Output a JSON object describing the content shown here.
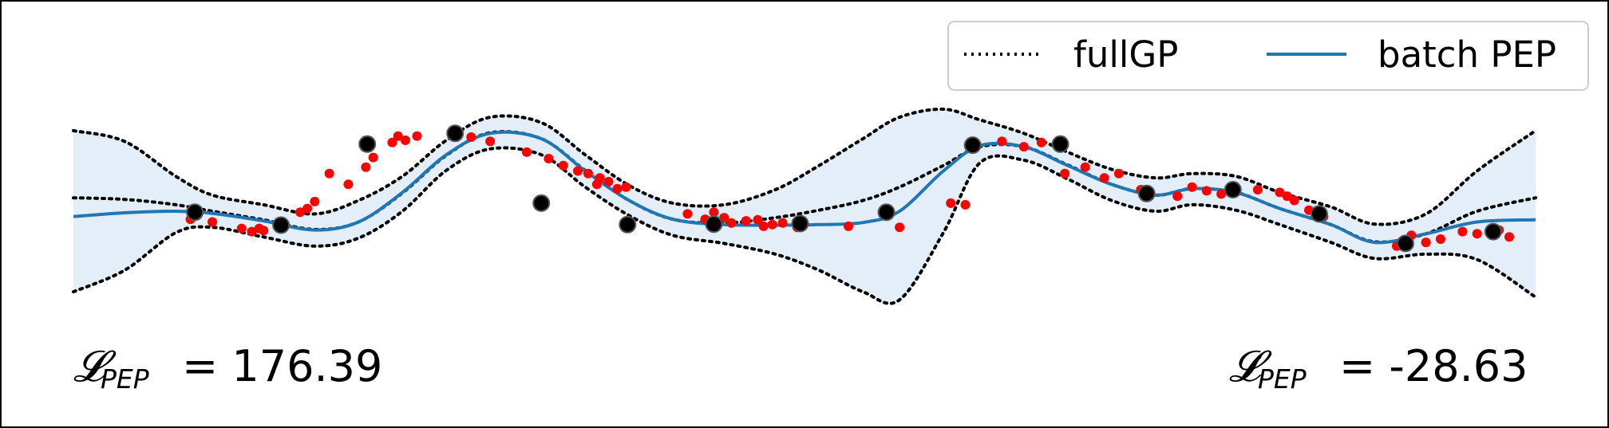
{
  "chart_data": {
    "type": "line",
    "xlim": [
      0,
      10
    ],
    "ylim": [
      -2.2,
      2.4
    ],
    "grid": false,
    "legend": {
      "position": "top-right",
      "columns": 2,
      "entries": [
        {
          "label": "fullGP",
          "style": "dotted",
          "color": "#000000"
        },
        {
          "label": "batch PEP",
          "style": "solid",
          "color": "#1f77b4"
        }
      ]
    },
    "colors": {
      "batch_pep_line": "#1f77b4",
      "batch_pep_band": "#e3eef8",
      "fullgp_line": "#000000",
      "observations": "#ff0000",
      "inducing_points": "#000000"
    },
    "series": [
      {
        "name": "batch PEP",
        "kind": "mean",
        "x": [
          0.0,
          0.35,
          0.7,
          0.95,
          1.3,
          1.65,
          1.95,
          2.25,
          2.55,
          2.85,
          3.2,
          3.5,
          3.8,
          4.1,
          4.45,
          4.8,
          5.1,
          5.4,
          5.65,
          5.95,
          6.2,
          6.5,
          6.8,
          7.1,
          7.4,
          7.65,
          7.95,
          8.25,
          8.6,
          8.9,
          9.25,
          9.6,
          10.0
        ],
        "y": [
          0.0,
          0.07,
          0.1,
          0.06,
          -0.08,
          -0.25,
          -0.1,
          0.45,
          1.15,
          1.55,
          1.45,
          0.85,
          0.3,
          -0.05,
          -0.15,
          -0.16,
          -0.15,
          -0.11,
          0.1,
          0.85,
          1.32,
          1.3,
          0.95,
          0.6,
          0.4,
          0.52,
          0.45,
          0.15,
          -0.15,
          -0.48,
          -0.32,
          -0.1,
          -0.06
        ]
      },
      {
        "name": "fullGP",
        "kind": "mean",
        "x": [
          0.0,
          0.35,
          0.7,
          0.95,
          1.3,
          1.65,
          1.95,
          2.25,
          2.55,
          2.85,
          3.2,
          3.5,
          3.8,
          4.1,
          4.45,
          4.8,
          5.1,
          5.4,
          5.65,
          5.95,
          6.2,
          6.5,
          6.8,
          7.1,
          7.4,
          7.65,
          7.95,
          8.25,
          8.6,
          8.9,
          9.25,
          9.6,
          10.0
        ],
        "y": [
          0.35,
          0.32,
          0.22,
          0.1,
          -0.06,
          -0.24,
          -0.1,
          0.44,
          1.14,
          1.56,
          1.45,
          0.86,
          0.3,
          -0.05,
          -0.12,
          -0.02,
          0.12,
          0.3,
          0.55,
          0.95,
          1.3,
          1.3,
          0.96,
          0.6,
          0.4,
          0.52,
          0.45,
          0.15,
          -0.15,
          -0.47,
          -0.32,
          0.1,
          0.35
        ]
      },
      {
        "name": "fullGP",
        "kind": "band",
        "x": [
          0.0,
          0.35,
          0.7,
          0.95,
          1.3,
          1.65,
          1.95,
          2.25,
          2.55,
          2.85,
          3.2,
          3.5,
          3.8,
          4.1,
          4.45,
          4.8,
          5.1,
          5.4,
          5.65,
          5.95,
          6.2,
          6.5,
          6.8,
          7.1,
          7.4,
          7.65,
          7.95,
          8.25,
          8.6,
          8.9,
          9.25,
          9.6,
          10.0
        ],
        "upper": [
          1.6,
          1.4,
          0.75,
          0.4,
          0.22,
          0.05,
          0.3,
          0.75,
          1.42,
          1.85,
          1.75,
          1.15,
          0.58,
          0.25,
          0.22,
          0.5,
          0.95,
          1.45,
          1.85,
          2.0,
          1.8,
          1.55,
          1.2,
          0.88,
          0.72,
          0.8,
          0.75,
          0.45,
          0.18,
          -0.14,
          0.05,
          0.85,
          1.6
        ],
        "lower": [
          -1.4,
          -1.0,
          -0.3,
          -0.2,
          -0.38,
          -0.55,
          -0.4,
          0.1,
          0.86,
          1.26,
          1.15,
          0.55,
          0.02,
          -0.35,
          -0.5,
          -0.7,
          -1.0,
          -1.4,
          -1.55,
          -0.3,
          1.0,
          1.05,
          0.7,
          0.3,
          0.1,
          0.22,
          0.12,
          -0.15,
          -0.48,
          -0.78,
          -0.7,
          -0.8,
          -1.5
        ]
      }
    ],
    "observations": {
      "x": [
        0.8,
        0.95,
        1.15,
        1.22,
        1.27,
        1.3,
        1.55,
        1.6,
        1.65,
        1.75,
        1.88,
        2.0,
        2.05,
        2.18,
        2.22,
        2.27,
        2.35,
        2.6,
        2.72,
        2.85,
        3.1,
        3.25,
        3.35,
        3.45,
        3.52,
        3.58,
        3.6,
        3.66,
        3.72,
        3.78,
        4.2,
        4.32,
        4.38,
        4.45,
        4.5,
        4.6,
        4.68,
        4.72,
        4.78,
        4.85,
        4.95,
        5.3,
        5.65,
        6.0,
        6.1,
        6.35,
        6.5,
        6.62,
        6.78,
        6.92,
        7.05,
        7.15,
        7.3,
        7.55,
        7.65,
        7.75,
        7.85,
        8.1,
        8.25,
        8.3,
        8.35,
        8.45,
        8.55,
        9.05,
        9.15,
        9.25,
        9.35,
        9.5,
        9.6,
        9.75,
        9.82
      ],
      "y": [
        -0.05,
        -0.1,
        -0.22,
        -0.28,
        -0.22,
        -0.26,
        0.08,
        0.15,
        0.28,
        0.8,
        0.6,
        0.92,
        1.1,
        1.38,
        1.5,
        1.42,
        1.5,
        1.55,
        1.48,
        1.4,
        1.2,
        1.08,
        0.95,
        0.85,
        0.8,
        0.6,
        0.72,
        0.65,
        0.52,
        0.55,
        0.05,
        -0.05,
        0.08,
        -0.02,
        -0.12,
        -0.08,
        -0.06,
        -0.18,
        -0.15,
        -0.12,
        -0.2,
        -0.18,
        -0.2,
        0.25,
        0.22,
        1.4,
        1.3,
        1.38,
        0.8,
        0.92,
        0.72,
        0.8,
        0.5,
        0.38,
        0.55,
        0.48,
        0.42,
        0.5,
        0.45,
        0.38,
        0.3,
        0.12,
        0.0,
        -0.55,
        -0.35,
        -0.48,
        -0.42,
        -0.28,
        -0.32,
        -0.25,
        -0.38
      ]
    },
    "inducing_points": {
      "x": [
        0.83,
        1.42,
        2.01,
        2.61,
        3.2,
        3.79,
        4.38,
        4.97,
        5.56,
        6.15,
        6.75,
        7.34,
        7.93,
        8.52,
        9.11,
        9.71
      ],
      "y": [
        0.08,
        -0.16,
        1.35,
        1.55,
        0.25,
        -0.15,
        -0.14,
        -0.13,
        0.08,
        1.33,
        1.35,
        0.43,
        0.5,
        0.05,
        -0.5,
        -0.28
      ]
    },
    "annotations": [
      {
        "label": "𝓛",
        "subscript": "PEP",
        "text": "= 176.39",
        "position": "bottom-left"
      },
      {
        "label": "𝓛̇",
        "subscript": "PEP",
        "text": "= -28.63",
        "position": "bottom-right"
      }
    ]
  }
}
